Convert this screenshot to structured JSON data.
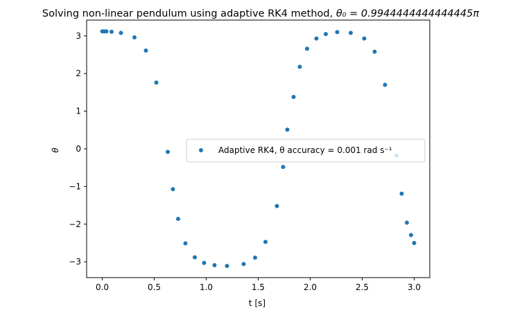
{
  "chart_data": {
    "type": "scatter",
    "title_prefix": "Solving non-linear pendulum using adaptive RK4 method, ",
    "title_math": "θ₀ = 0.9944444444444445π",
    "xlabel": "t [s]",
    "ylabel": "θ",
    "xlim": [
      -0.15,
      3.15
    ],
    "ylim": [
      -3.42,
      3.42
    ],
    "xticks": [
      0.0,
      0.5,
      1.0,
      1.5,
      2.0,
      2.5,
      3.0
    ],
    "xtick_labels": [
      "0.0",
      "0.5",
      "1.0",
      "1.5",
      "2.0",
      "2.5",
      "3.0"
    ],
    "yticks": [
      3,
      2,
      1,
      0,
      -1,
      -2,
      -3
    ],
    "ytick_labels": [
      "3",
      "2",
      "1",
      "0",
      "−1",
      "−2",
      "−3"
    ],
    "grid": false,
    "legend_position": "center-right",
    "series": [
      {
        "name": "Adaptive RK4, θ accuracy = 0.001 rad s⁻¹",
        "color": "#1f77b4",
        "x": [
          0.0,
          0.02,
          0.04,
          0.09,
          0.18,
          0.31,
          0.42,
          0.52,
          0.63,
          0.68,
          0.73,
          0.8,
          0.89,
          0.98,
          1.08,
          1.2,
          1.36,
          1.47,
          1.57,
          1.68,
          1.74,
          1.78,
          1.84,
          1.9,
          1.97,
          2.06,
          2.15,
          2.26,
          2.39,
          2.52,
          2.62,
          2.72,
          2.83,
          2.88,
          2.93,
          2.97,
          3.0
        ],
        "y": [
          3.12,
          3.12,
          3.12,
          3.11,
          3.08,
          2.96,
          2.61,
          1.76,
          -0.08,
          -1.07,
          -1.86,
          -2.51,
          -2.88,
          -3.03,
          -3.09,
          -3.11,
          -3.06,
          -2.89,
          -2.47,
          -1.52,
          -0.48,
          0.51,
          1.38,
          2.18,
          2.66,
          2.93,
          3.05,
          3.1,
          3.08,
          2.93,
          2.58,
          1.7,
          -0.18,
          -1.19,
          -1.96,
          -2.29,
          -2.5
        ]
      }
    ]
  }
}
